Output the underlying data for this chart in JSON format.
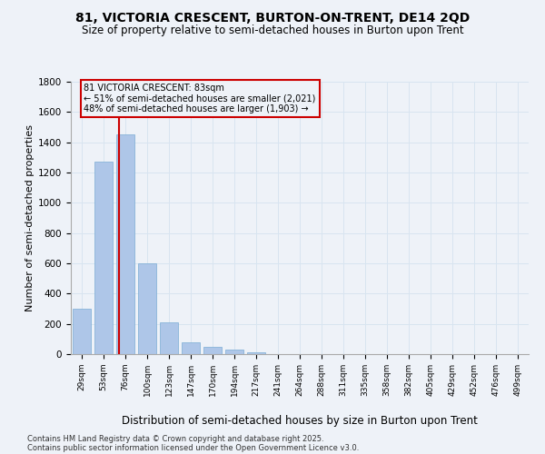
{
  "title1": "81, VICTORIA CRESCENT, BURTON-ON-TRENT, DE14 2QD",
  "title2": "Size of property relative to semi-detached houses in Burton upon Trent",
  "xlabel": "Distribution of semi-detached houses by size in Burton upon Trent",
  "ylabel": "Number of semi-detached properties",
  "categories": [
    "29sqm",
    "53sqm",
    "76sqm",
    "100sqm",
    "123sqm",
    "147sqm",
    "170sqm",
    "194sqm",
    "217sqm",
    "241sqm",
    "264sqm",
    "288sqm",
    "311sqm",
    "335sqm",
    "358sqm",
    "382sqm",
    "405sqm",
    "429sqm",
    "452sqm",
    "476sqm",
    "499sqm"
  ],
  "values": [
    300,
    1270,
    1450,
    600,
    210,
    80,
    50,
    30,
    10,
    3,
    1,
    0,
    0,
    0,
    0,
    0,
    0,
    0,
    0,
    0,
    0
  ],
  "bar_color": "#aec6e8",
  "bar_edge_color": "#7aadd4",
  "grid_color": "#d8e4f0",
  "vline_x_idx": 2,
  "vline_color": "#cc0000",
  "annotation_text": "81 VICTORIA CRESCENT: 83sqm\n← 51% of semi-detached houses are smaller (2,021)\n48% of semi-detached houses are larger (1,903) →",
  "annotation_box_color": "#cc0000",
  "annotation_text_color": "#000000",
  "ylim": [
    0,
    1800
  ],
  "yticks": [
    0,
    200,
    400,
    600,
    800,
    1000,
    1200,
    1400,
    1600,
    1800
  ],
  "footnote1": "Contains HM Land Registry data © Crown copyright and database right 2025.",
  "footnote2": "Contains public sector information licensed under the Open Government Licence v3.0.",
  "bg_color": "#eef2f8",
  "title1_fontsize": 10,
  "title2_fontsize": 8.5,
  "xlabel_fontsize": 8.5,
  "ylabel_fontsize": 8
}
